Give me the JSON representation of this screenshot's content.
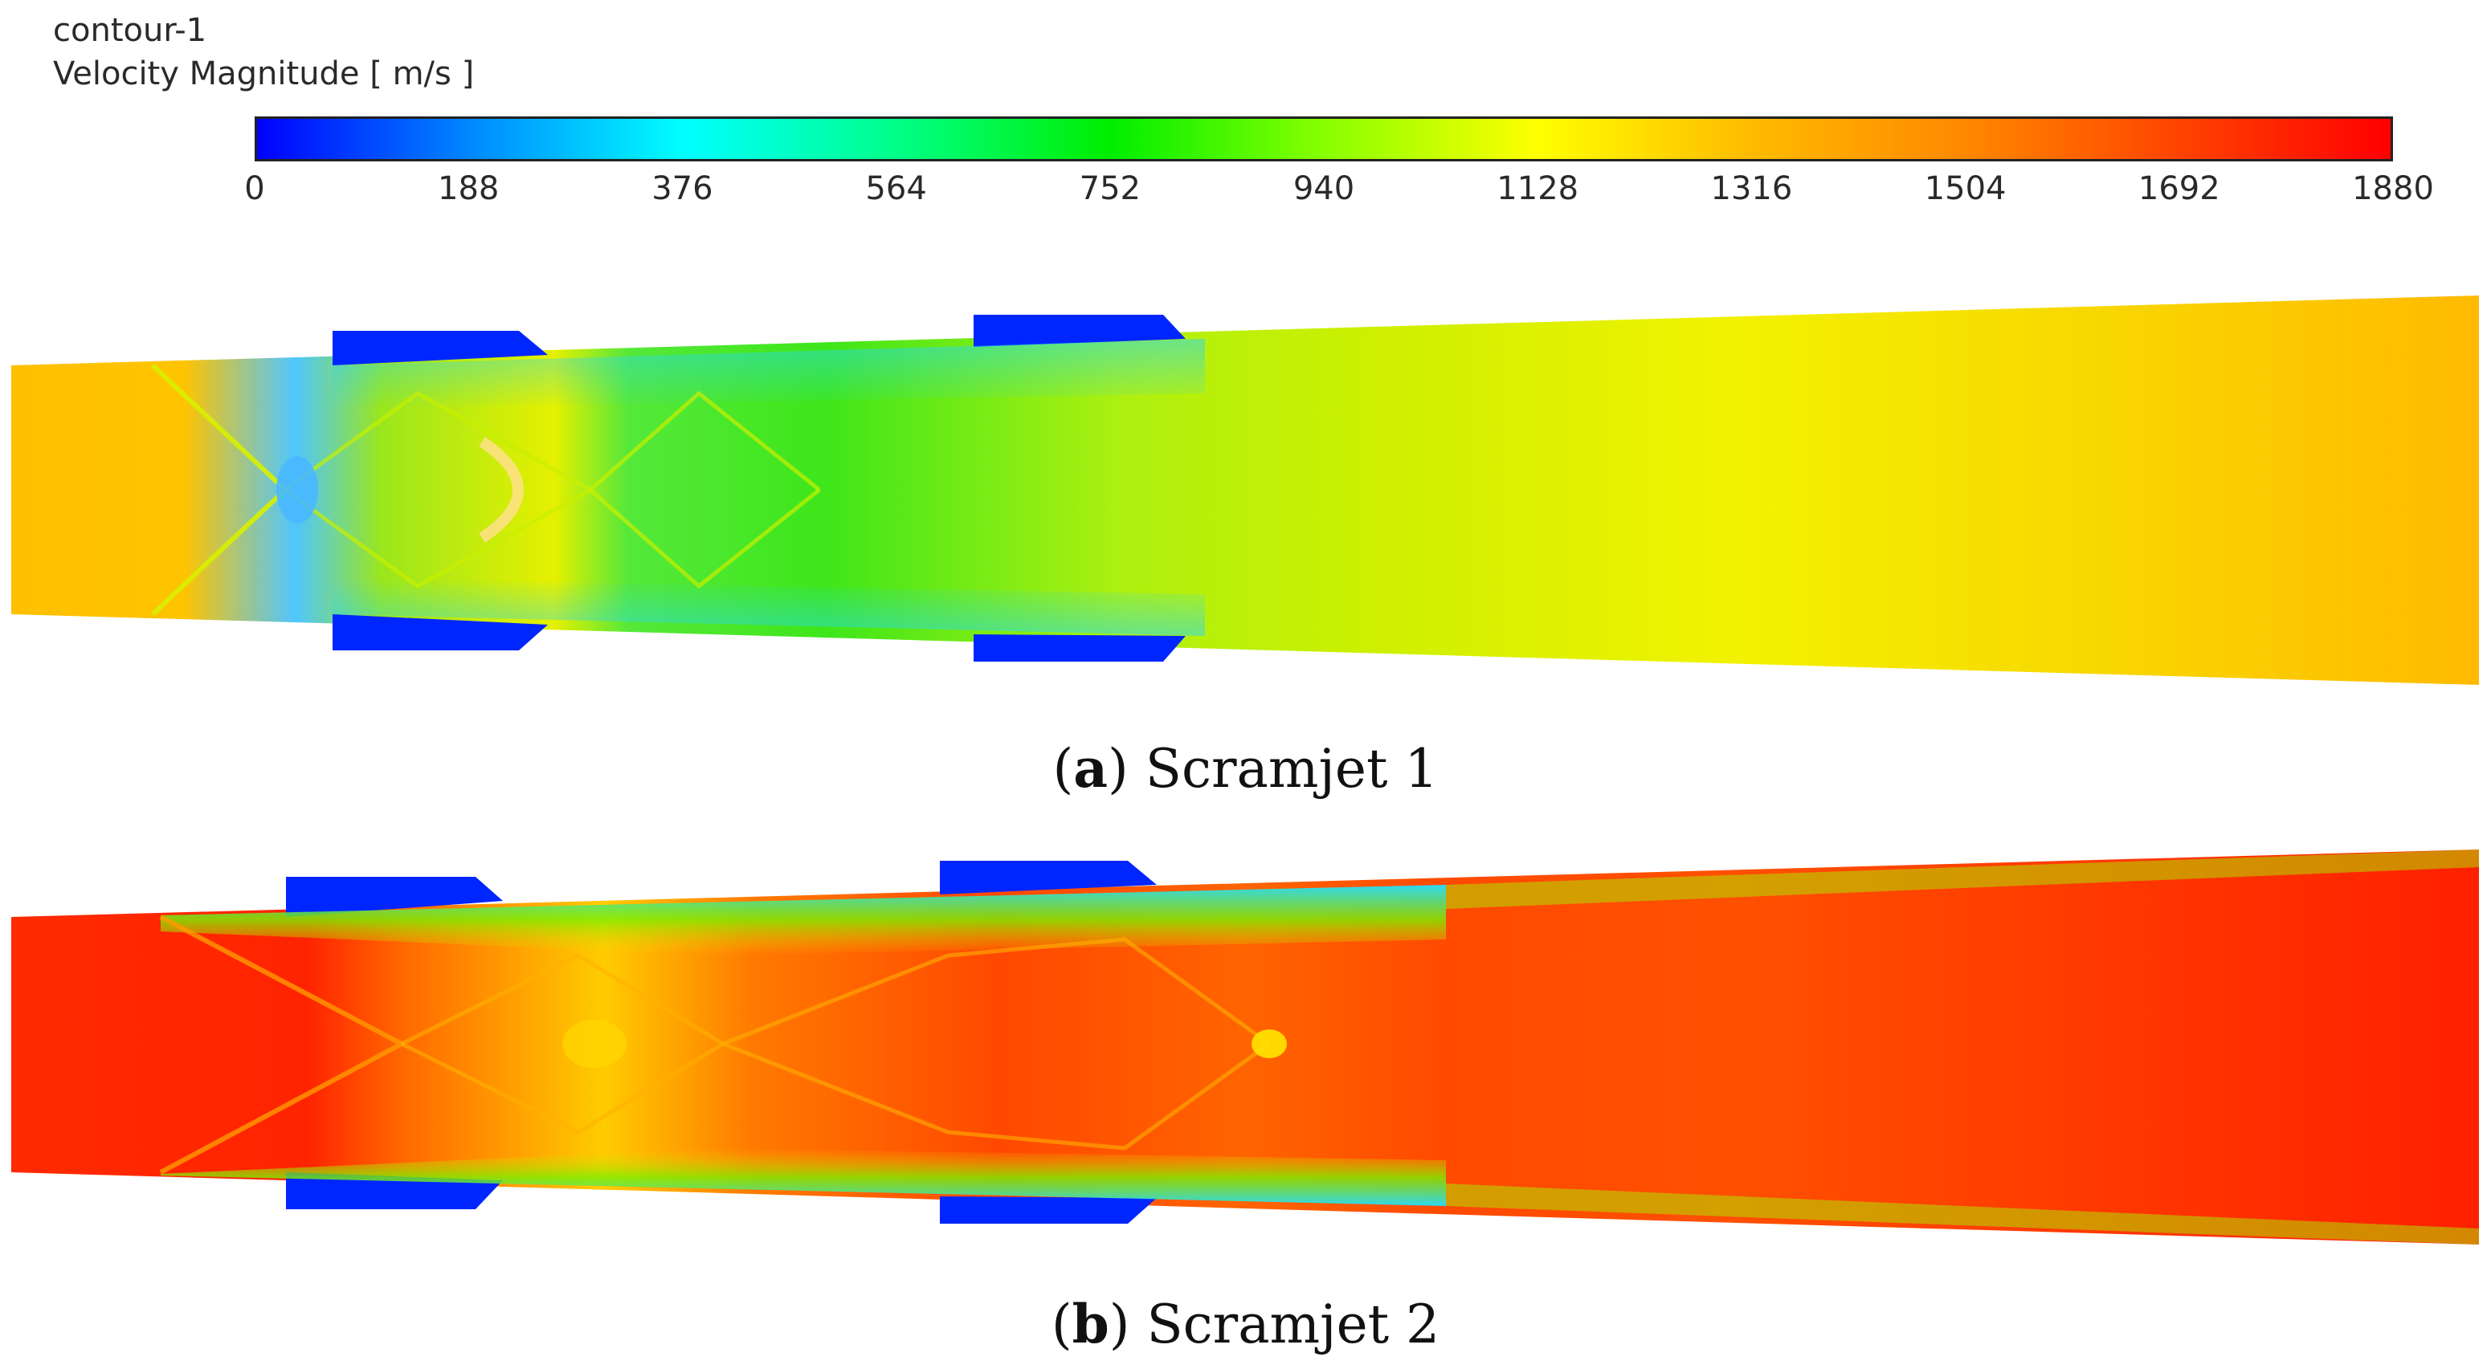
{
  "legend": {
    "name": "contour-1",
    "quantity": "Velocity Magnitude [ m/s ]",
    "ticks": [
      "0",
      "188",
      "376",
      "564",
      "752",
      "940",
      "1128",
      "1316",
      "1504",
      "1692",
      "1880"
    ],
    "colors": [
      "#0000ff",
      "#0088ff",
      "#00ffff",
      "#00ff88",
      "#00ee00",
      "#88ff00",
      "#ffff00",
      "#ffbb00",
      "#ff8800",
      "#ff4400",
      "#ff0000"
    ]
  },
  "panels": [
    {
      "letter": "a",
      "caption": "Scramjet 1",
      "cavity_color": "#0022ff",
      "inlet_color": "#ffbf00",
      "core_color": "#99ee22",
      "outlet_color": "#ffb800"
    },
    {
      "letter": "b",
      "caption": "Scramjet 2",
      "cavity_color": "#0022ff",
      "inlet_color": "#ff2a00",
      "core_color": "#ff5a00",
      "outlet_color": "#ff2200"
    }
  ]
}
